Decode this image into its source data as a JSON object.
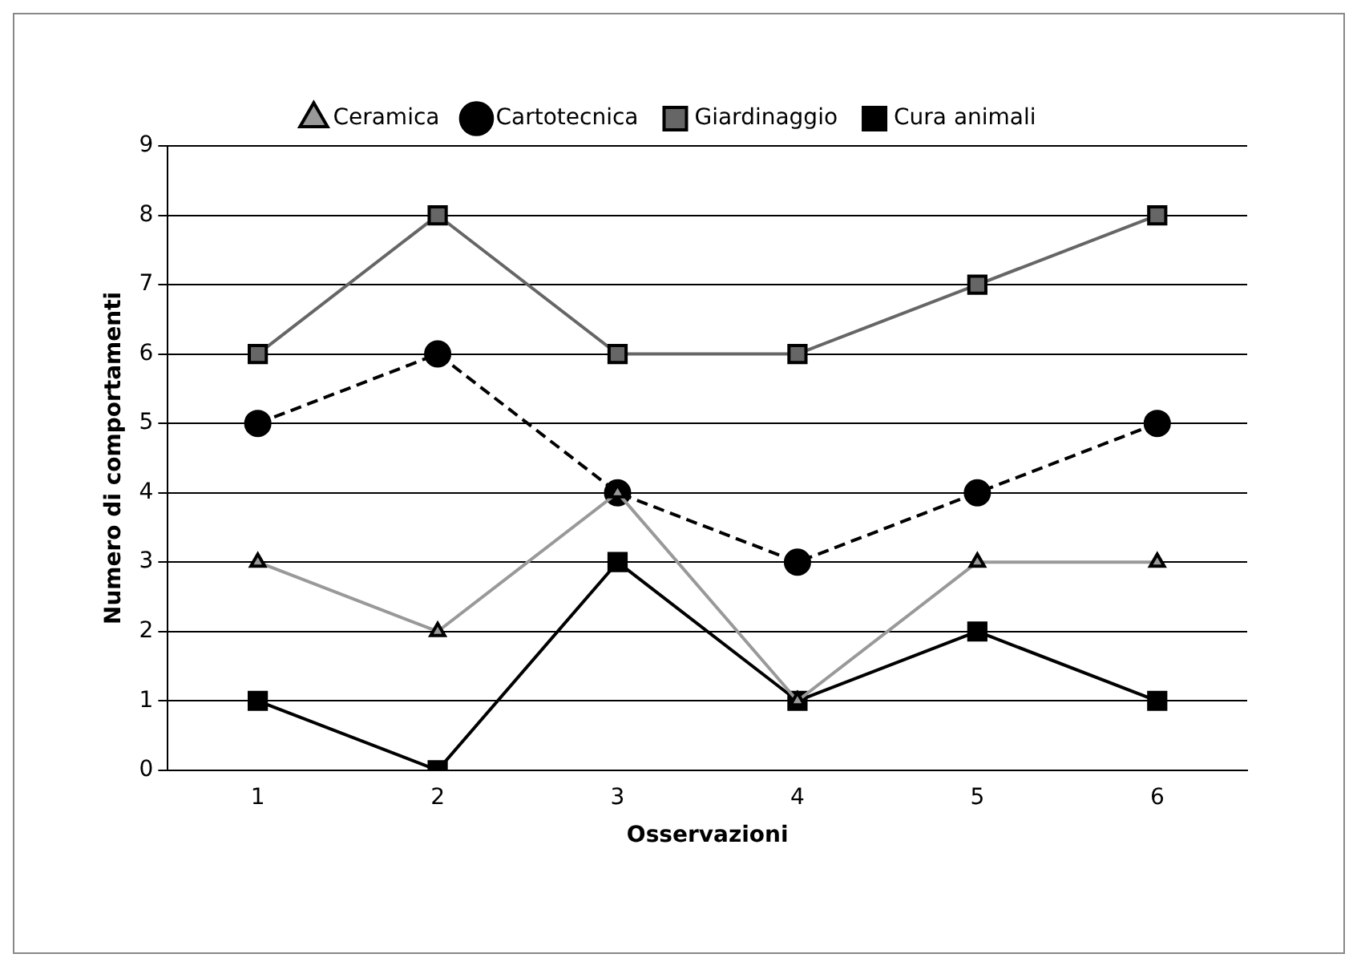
{
  "chart_data": {
    "type": "line",
    "xlabel": "Osservazioni",
    "ylabel": "Numero di comportamenti",
    "categories": [
      "1",
      "2",
      "3",
      "4",
      "5",
      "6"
    ],
    "series": [
      {
        "name": "Ceramica",
        "color": "#999999",
        "values": [
          3,
          2,
          4,
          1,
          3,
          3
        ],
        "marker": "triangle",
        "line_style": "solid"
      },
      {
        "name": "Cartotecnica",
        "color": "#000000",
        "values": [
          5,
          6,
          4,
          3,
          4,
          5
        ],
        "marker": "circle",
        "line_style": "dashed"
      },
      {
        "name": "Giardinaggio",
        "color": "#666666",
        "values": [
          6,
          8,
          6,
          6,
          7,
          8
        ],
        "marker": "square",
        "line_style": "solid"
      },
      {
        "name": "Cura animali",
        "color": "#000000",
        "values": [
          1,
          0,
          3,
          1,
          2,
          1
        ],
        "marker": "square",
        "line_style": "solid"
      }
    ],
    "ylim": [
      0,
      9
    ],
    "yticks": [
      0,
      1,
      2,
      3,
      4,
      5,
      6,
      7,
      8,
      9
    ],
    "grid": "y",
    "legend": "top"
  }
}
